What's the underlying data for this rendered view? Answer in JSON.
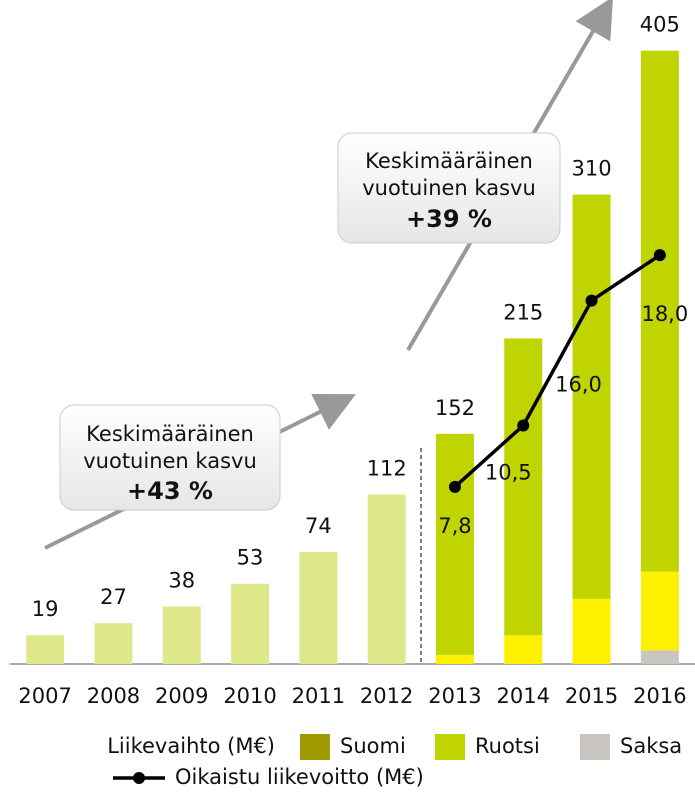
{
  "chart_data": {
    "type": "bar",
    "categories": [
      "2007",
      "2008",
      "2009",
      "2010",
      "2011",
      "2012",
      "2013",
      "2014",
      "2015",
      "2016"
    ],
    "ylim": [
      0,
      420
    ],
    "y2lim": [
      0,
      28
    ],
    "legend_title": "Liikevaihto (M€)",
    "series": [
      {
        "name": "Saksa",
        "color": "#c9c5c0",
        "bar_colors": [
          "#c9c5c0",
          "#c9c5c0",
          "#c9c5c0",
          "#c9c5c0",
          "#c9c5c0",
          "#c9c5c0",
          "#c9c5c0",
          "#c9c5c0",
          "#c9c5c0",
          "#c9c5c0"
        ],
        "values": [
          null,
          null,
          null,
          null,
          null,
          null,
          null,
          null,
          null,
          9
        ]
      },
      {
        "name": "Suomi",
        "color": "#9e9a00",
        "bar_colors": [
          "#dfe98c",
          "#dfe98c",
          "#dfe98c",
          "#dfe98c",
          "#dfe98c",
          "#dfe98c",
          "#fff000",
          "#fff000",
          "#fff000",
          "#fff000"
        ],
        "values": [
          19,
          27,
          38,
          53,
          74,
          112,
          6,
          19,
          43,
          52
        ]
      },
      {
        "name": "Ruotsi",
        "color": "#bfd400",
        "bar_colors": [
          "#bfd400",
          "#bfd400",
          "#bfd400",
          "#bfd400",
          "#bfd400",
          "#bfd400",
          "#bfd400",
          "#bfd400",
          "#bfd400",
          "#bfd400"
        ],
        "values": [
          null,
          null,
          null,
          null,
          null,
          null,
          146,
          196,
          267,
          344
        ]
      }
    ],
    "totals": [
      19,
      27,
      38,
      53,
      74,
      112,
      152,
      215,
      310,
      405
    ],
    "line": {
      "name": "Oikaistu liikevoitto (M€)",
      "axis": "y2",
      "color": "#000000",
      "values": [
        null,
        null,
        null,
        null,
        null,
        null,
        7.8,
        10.5,
        16.0,
        18.0
      ],
      "value_labels": [
        null,
        null,
        null,
        null,
        null,
        null,
        "7,8",
        "10,5",
        "16,0",
        "18,0"
      ]
    },
    "annotations": [
      {
        "line1": "Keskimääräinen",
        "line2": "vuotuinen kasvu",
        "value": "+43 %"
      },
      {
        "line1": "Keskimääräinen",
        "line2": "vuotuinen kasvu",
        "value": "+39 %"
      }
    ]
  }
}
